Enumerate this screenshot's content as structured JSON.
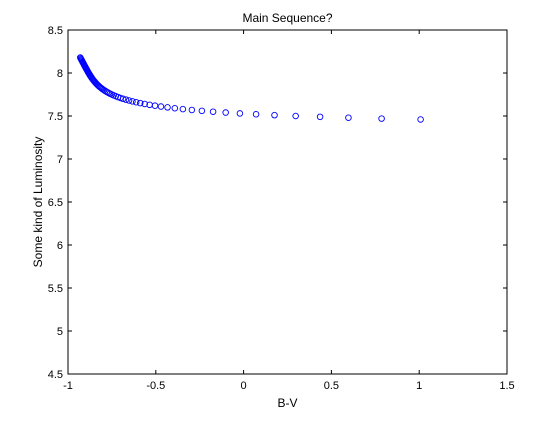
{
  "chart_data": {
    "type": "scatter",
    "title": "Main Sequence?",
    "xlabel": "B-V",
    "ylabel": "Some kind of Luminosity",
    "xlim": [
      -1,
      1.5
    ],
    "ylim": [
      4.5,
      8.5
    ],
    "xticks": [
      "-1",
      "-0.5",
      "0",
      "0.5",
      "1",
      "1.5"
    ],
    "yticks": [
      "4.5",
      "5",
      "5.5",
      "6",
      "6.5",
      "7",
      "7.5",
      "8",
      "8.5"
    ],
    "grid": false,
    "marker": "circle-open",
    "series": [
      {
        "color": "#0000ff",
        "x": [
          -0.9302,
          -0.9277,
          -0.9251,
          -0.9225,
          -0.9199,
          -0.9173,
          -0.9147,
          -0.9121,
          -0.9095,
          -0.9069,
          -0.9043,
          -0.9017,
          -0.8991,
          -0.8964,
          -0.8937,
          -0.891,
          -0.8883,
          -0.8855,
          -0.8826,
          -0.8797,
          -0.8767,
          -0.8736,
          -0.8705,
          -0.8672,
          -0.8638,
          -0.8603,
          -0.8567,
          -0.8529,
          -0.8489,
          -0.8447,
          -0.8403,
          -0.8357,
          -0.8308,
          -0.8256,
          -0.8201,
          -0.8143,
          -0.8081,
          -0.8015,
          -0.7944,
          -0.7868,
          -0.7787,
          -0.77,
          -0.7606,
          -0.7505,
          -0.7396,
          -0.7278,
          -0.7151,
          -0.7013,
          -0.6863,
          -0.67,
          -0.6523,
          -0.6329,
          -0.6117,
          -0.5885,
          -0.5631,
          -0.5352,
          -0.5045,
          -0.4706,
          -0.4332,
          -0.3917,
          -0.3457,
          -0.2946,
          -0.2376,
          -0.1738,
          -0.1021,
          -0.0211,
          0.071,
          0.176,
          0.2965,
          0.4356,
          0.597,
          0.7858,
          1.008
        ],
        "y": [
          8.18,
          8.17,
          8.16,
          8.15,
          8.14,
          8.13,
          8.12,
          8.11,
          8.1,
          8.09,
          8.08,
          8.07,
          8.06,
          8.05,
          8.04,
          8.03,
          8.02,
          8.01,
          8.0,
          7.99,
          7.98,
          7.97,
          7.96,
          7.95,
          7.94,
          7.93,
          7.92,
          7.91,
          7.9,
          7.89,
          7.88,
          7.87,
          7.86,
          7.85,
          7.84,
          7.83,
          7.82,
          7.81,
          7.8,
          7.79,
          7.78,
          7.77,
          7.76,
          7.75,
          7.74,
          7.73,
          7.72,
          7.71,
          7.7,
          7.69,
          7.68,
          7.67,
          7.66,
          7.65,
          7.64,
          7.63,
          7.62,
          7.61,
          7.6,
          7.59,
          7.58,
          7.57,
          7.56,
          7.55,
          7.54,
          7.53,
          7.52,
          7.51,
          7.5,
          7.49,
          7.48,
          7.47,
          7.46
        ]
      }
    ]
  }
}
